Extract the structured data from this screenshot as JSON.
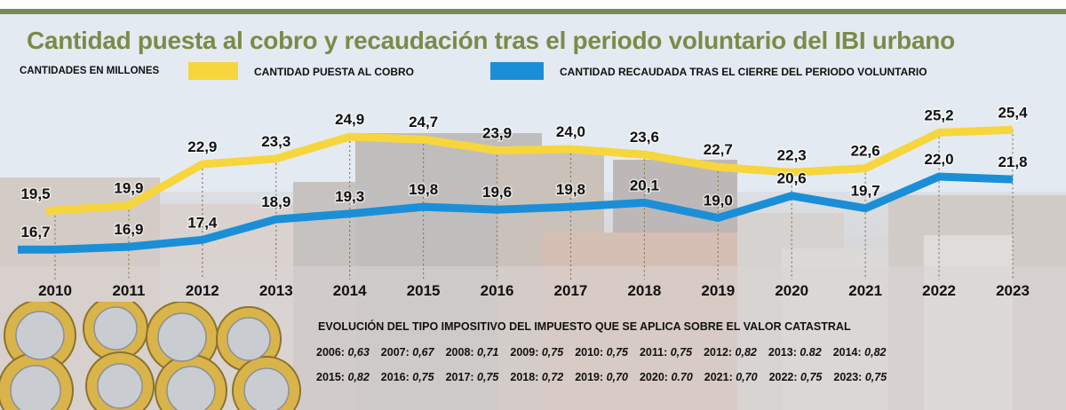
{
  "title": "Cantidad puesta al cobro y recaudación tras el periodo voluntario del IBI urbano",
  "units_label": "CANTIDADES  EN MILLONES",
  "colors": {
    "yellow": "#f6d63c",
    "blue": "#1a8fd8",
    "green": "#7c8a48"
  },
  "chart_data": {
    "type": "line",
    "categories": [
      "2010",
      "2011",
      "2012",
      "2013",
      "2014",
      "2015",
      "2016",
      "2017",
      "2018",
      "2019",
      "2020",
      "2021",
      "2022",
      "2023"
    ],
    "series": [
      {
        "name": "CANTIDAD PUESTA AL COBRO",
        "color": "#f6d63c",
        "values": [
          19.5,
          19.9,
          22.9,
          23.3,
          24.9,
          24.7,
          23.9,
          24.0,
          23.6,
          22.7,
          22.3,
          22.6,
          25.2,
          25.4
        ],
        "labels": [
          "19,5",
          "19,9",
          "22,9",
          "23,3",
          "24,9",
          "24,7",
          "23,9",
          "24,0",
          "23,6",
          "22,7",
          "22,3",
          "22,6",
          "25,2",
          "25,4"
        ]
      },
      {
        "name": "CANTIDAD RECAUDADA TRAS EL CIERRE DEL PERIODO VOLUNTARIO",
        "color": "#1a8fd8",
        "values": [
          16.7,
          16.9,
          17.4,
          18.9,
          19.3,
          19.8,
          19.6,
          19.8,
          20.1,
          19.0,
          20.6,
          19.7,
          22.0,
          21.8
        ],
        "labels": [
          "16,7",
          "16,9",
          "17,4",
          "18,9",
          "19,3",
          "19,8",
          "19,6",
          "19,8",
          "20,1",
          "19,0",
          "20,6",
          "19,7",
          "22,0",
          "21,8"
        ]
      }
    ]
  },
  "rates": {
    "title": "EVOLUCIÓN DEL TIPO IMPOSITIVO DEL IMPUESTO QUE SE APLICA SOBRE EL VALOR CATASTRAL",
    "row1": [
      {
        "year": "2006:",
        "value": "0,63"
      },
      {
        "year": "2007:",
        "value": "0,67"
      },
      {
        "year": "2008:",
        "value": "0,71"
      },
      {
        "year": "2009:",
        "value": "0,75"
      },
      {
        "year": "2010:",
        "value": "0,75"
      },
      {
        "year": "2011:",
        "value": "0,75"
      },
      {
        "year": "2012:",
        "value": "0,82"
      },
      {
        "year": "2013:",
        "value": "0.82"
      },
      {
        "year": "2014:",
        "value": "0,82"
      }
    ],
    "row2": [
      {
        "year": "2015:",
        "value": "0,82"
      },
      {
        "year": "2016:",
        "value": "0,75"
      },
      {
        "year": "2017:",
        "value": "0,75"
      },
      {
        "year": "2018:",
        "value": "0,72"
      },
      {
        "year": "2019:",
        "value": "0,70"
      },
      {
        "year": "2020:",
        "value": "0.70"
      },
      {
        "year": "2021:",
        "value": "0,70"
      },
      {
        "year": "2022:",
        "value": "0,75"
      },
      {
        "year": "2023:",
        "value": "0,75"
      }
    ]
  }
}
